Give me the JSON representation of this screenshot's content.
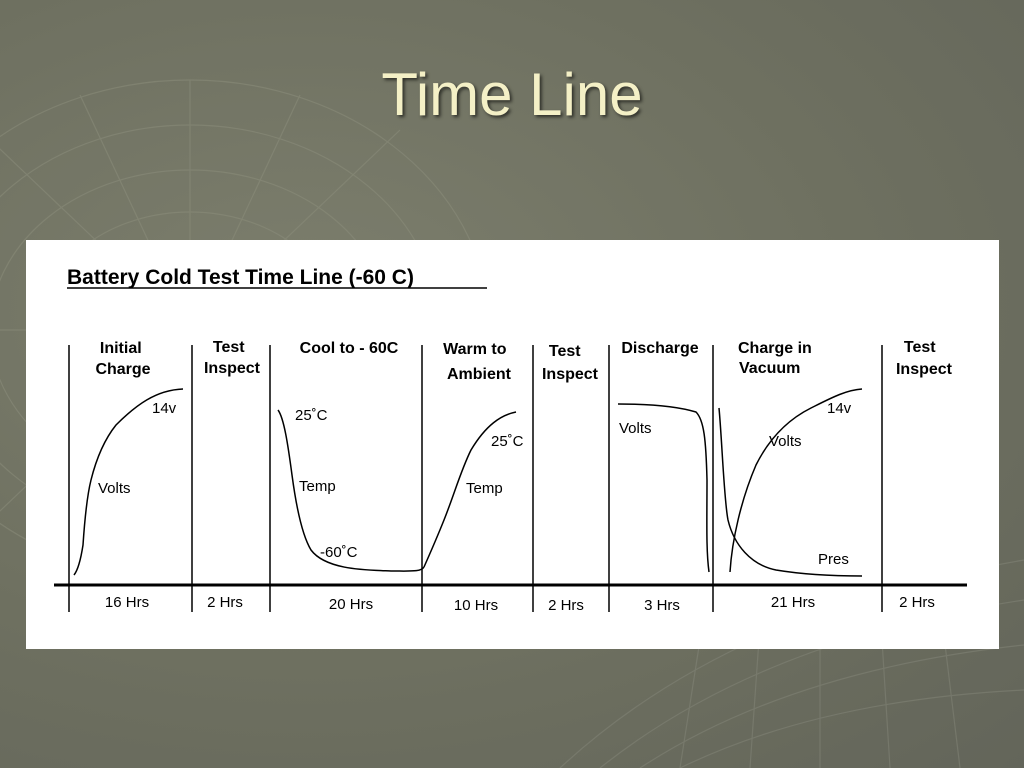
{
  "slide": {
    "title": "Time Line"
  },
  "diagram": {
    "heading": "Battery Cold Test Time Line (-60 C)",
    "phases": [
      {
        "label_lines": [
          "Initial",
          "Charge"
        ],
        "duration": "16 Hrs"
      },
      {
        "label_lines": [
          "Test",
          "Inspect"
        ],
        "duration": "2 Hrs"
      },
      {
        "label_lines": [
          "Cool to - 60C"
        ],
        "duration": "20 Hrs"
      },
      {
        "label_lines": [
          "Warm to",
          "Ambient"
        ],
        "duration": "10 Hrs"
      },
      {
        "label_lines": [
          "Test",
          "Inspect"
        ],
        "duration": "2 Hrs"
      },
      {
        "label_lines": [
          "Discharge"
        ],
        "duration": "3 Hrs"
      },
      {
        "label_lines": [
          "Charge in",
          "Vacuum"
        ],
        "duration": "21 Hrs"
      },
      {
        "label_lines": [
          "Test",
          "Inspect"
        ],
        "duration": "2 Hrs"
      }
    ],
    "curve_labels": {
      "initial_14v": "14v",
      "initial_volts": "Volts",
      "cool_25c": "25˚C",
      "cool_temp": "Temp",
      "cool_minus60c": "-60˚C",
      "warm_25c": "25˚C",
      "warm_temp": "Temp",
      "discharge_volts": "Volts",
      "vacuum_14v": "14v",
      "vacuum_volts": "Volts",
      "vacuum_pres": "Pres"
    }
  }
}
